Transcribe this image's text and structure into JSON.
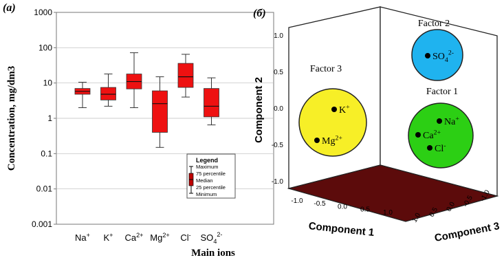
{
  "chart_data": [
    {
      "type": "box",
      "panel_label": "(a)",
      "ylabel": "Concentration, mg/dm3",
      "xlabel": "Main ions",
      "yscale": "log",
      "ylim": [
        0.001,
        1000
      ],
      "y_ticks": [
        "0.001",
        "0.01",
        "0.1",
        "1",
        "10",
        "100",
        "1000"
      ],
      "categories": [
        {
          "base": "Na",
          "sup": "+"
        },
        {
          "base": "K",
          "sup": "+"
        },
        {
          "base": "Ca",
          "sup": "2+"
        },
        {
          "base": "Mg",
          "sup": "2+"
        },
        {
          "base": "Cl",
          "sup": "-"
        },
        {
          "base": "SO",
          "sub": "4",
          "sup": "2-"
        }
      ],
      "boxes": [
        {
          "min": 2.0,
          "q1": 4.8,
          "median": 5.8,
          "q3": 7.0,
          "max": 10.5
        },
        {
          "min": 2.2,
          "q1": 3.3,
          "median": 4.8,
          "q3": 7.5,
          "max": 18.0
        },
        {
          "min": 2.0,
          "q1": 6.8,
          "median": 11.0,
          "q3": 18.0,
          "max": 72.0
        },
        {
          "min": 0.15,
          "q1": 0.4,
          "median": 2.6,
          "q3": 6.0,
          "max": 15.0
        },
        {
          "min": 4.0,
          "q1": 7.5,
          "median": 15.0,
          "q3": 36.0,
          "max": 65.0
        },
        {
          "min": 0.65,
          "q1": 1.1,
          "median": 2.2,
          "q3": 7.0,
          "max": 14.0
        }
      ],
      "box_color": "#ee1111",
      "legend": {
        "title": "Legend",
        "items": [
          "Maximum",
          "75 percentile",
          "Median",
          "25 percentile",
          "Minimum"
        ]
      }
    },
    {
      "type": "scatter3d",
      "panel_label": "(б)",
      "axes": {
        "x": "Component 1",
        "y": "Component 2",
        "z": "Component 3"
      },
      "ticks": {
        "x": [
          "-1.0",
          "-0.5",
          "0.0",
          "0.5",
          "1.0"
        ],
        "y": [
          "1.0",
          "0.5",
          "0.0",
          "-0.5",
          "-1.0"
        ],
        "z": [
          "-1.0",
          "-0.5",
          "0.0",
          "0.5",
          "1.0"
        ]
      },
      "floor_color": "#5c0b0b",
      "clusters": [
        {
          "factor": "Factor 3",
          "color": "#f7ef27",
          "points": [
            {
              "base": "K",
              "sup": "+"
            },
            {
              "base": "Mg",
              "sup": "2+"
            }
          ]
        },
        {
          "factor": "Factor 2",
          "color": "#1fb3ef",
          "points": [
            {
              "base": "SO",
              "sub": "4",
              "sup": "2-"
            }
          ]
        },
        {
          "factor": "Factor 1",
          "color": "#2ccf14",
          "points": [
            {
              "base": "Na",
              "sup": "+"
            },
            {
              "base": "Ca",
              "sup": "2+"
            },
            {
              "base": "Cl",
              "sup": "-"
            }
          ]
        }
      ]
    }
  ]
}
